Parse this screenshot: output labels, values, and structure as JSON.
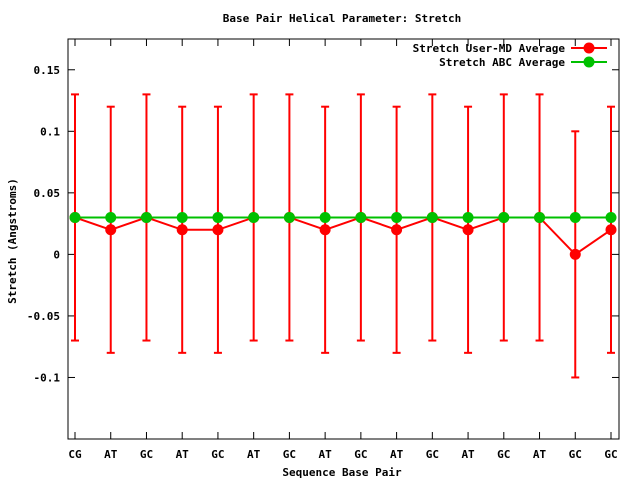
{
  "chart_data": {
    "type": "line",
    "title": "Base Pair Helical Parameter: Stretch",
    "xlabel": "Sequence Base Pair",
    "ylabel": "Stretch (Angstroms)",
    "categories": [
      "CG",
      "AT",
      "GC",
      "AT",
      "GC",
      "AT",
      "GC",
      "AT",
      "GC",
      "AT",
      "GC",
      "AT",
      "GC",
      "AT",
      "GC",
      "GC"
    ],
    "ylim": [
      -0.15,
      0.175
    ],
    "yticks": [
      -0.1,
      -0.05,
      0,
      0.05,
      0.1,
      0.15
    ],
    "ytick_labels": [
      "-0.1",
      "-0.05",
      "0",
      "0.05",
      "0.1",
      "0.15"
    ],
    "grid": false,
    "legend_position": "top-right",
    "series": [
      {
        "name": "Stretch User-MD Average",
        "color": "#ff0000",
        "values": [
          0.03,
          0.02,
          0.03,
          0.02,
          0.02,
          0.03,
          0.03,
          0.02,
          0.03,
          0.02,
          0.03,
          0.02,
          0.03,
          0.03,
          0.0,
          0.02
        ],
        "err_low": [
          -0.07,
          -0.08,
          -0.07,
          -0.08,
          -0.08,
          -0.07,
          -0.07,
          -0.08,
          -0.07,
          -0.08,
          -0.07,
          -0.08,
          -0.07,
          -0.07,
          -0.1,
          -0.08
        ],
        "err_high": [
          0.13,
          0.12,
          0.13,
          0.12,
          0.12,
          0.13,
          0.13,
          0.12,
          0.13,
          0.12,
          0.13,
          0.12,
          0.13,
          0.13,
          0.1,
          0.12
        ]
      },
      {
        "name": "Stretch ABC Average",
        "color": "#00c000",
        "values": [
          0.03,
          0.03,
          0.03,
          0.03,
          0.03,
          0.03,
          0.03,
          0.03,
          0.03,
          0.03,
          0.03,
          0.03,
          0.03,
          0.03,
          0.03,
          0.03
        ]
      }
    ]
  }
}
